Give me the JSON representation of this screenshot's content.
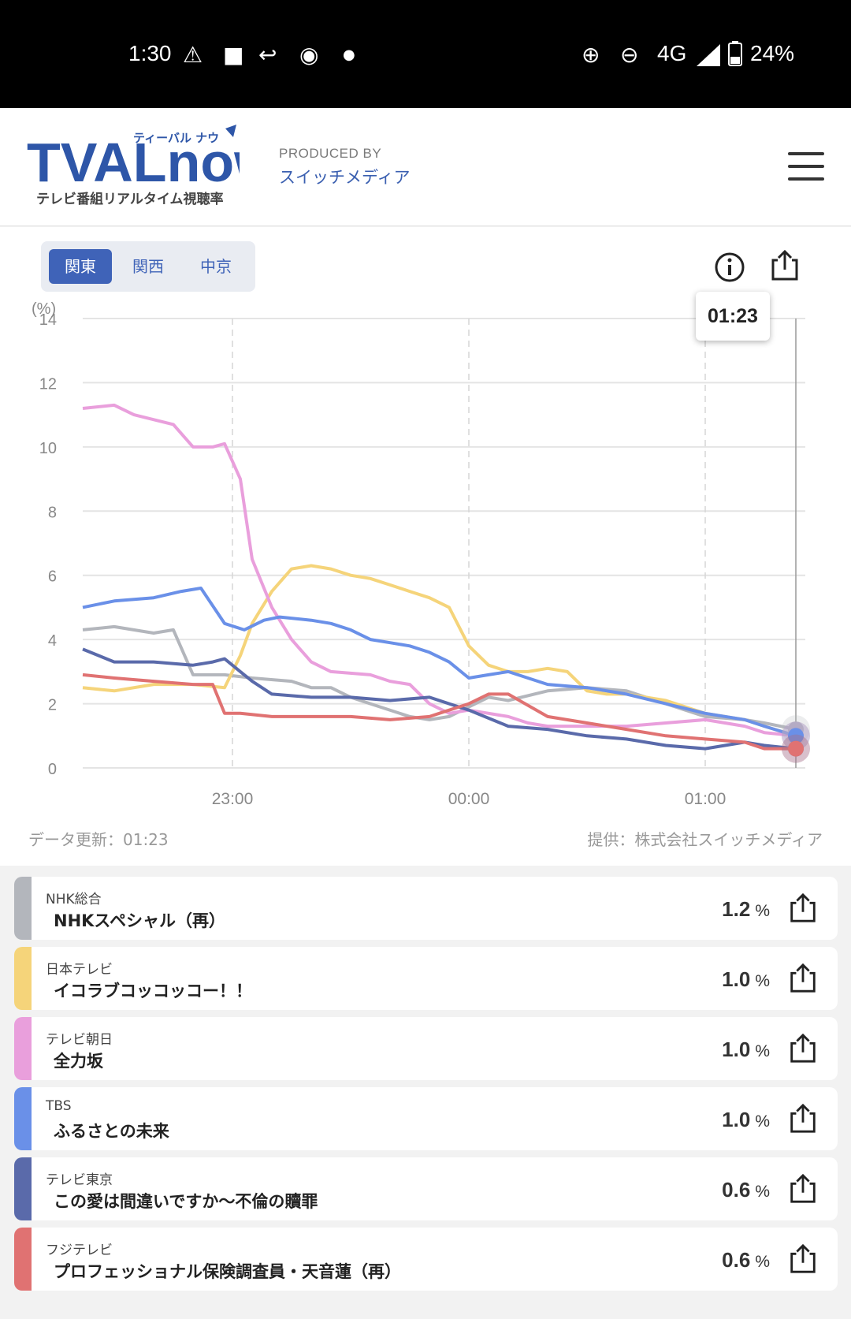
{
  "status_bar": {
    "time": "1:30",
    "left_icons": [
      "warning-icon",
      "app-icon",
      "reply-icon",
      "thermometer-icon",
      "dot-icon"
    ],
    "network": "4G",
    "battery": "24%"
  },
  "header": {
    "logo_main": "TVALnow",
    "logo_kana": "ティーバル ナウ",
    "logo_sub": "テレビ番組リアルタイム視聴率",
    "produced_by_label": "PRODUCED BY",
    "producer": "スイッチメディア"
  },
  "tabs": [
    {
      "label": "関東",
      "active": true
    },
    {
      "label": "関西",
      "active": false
    },
    {
      "label": "中京",
      "active": false
    }
  ],
  "tooltip_time": "01:23",
  "chart_footer": {
    "updated": "データ更新：01:23",
    "credit": "提供：株式会社スイッチメディア"
  },
  "chart_data": {
    "type": "line",
    "ylabel": "(%)",
    "ylim": [
      0,
      14
    ],
    "yticks": [
      "0",
      "2",
      "4",
      "6",
      "8",
      "10",
      "12",
      "14"
    ],
    "x_range": [
      "22:22",
      "01:23"
    ],
    "xticks": [
      "23:00",
      "00:00",
      "01:00"
    ],
    "grid": true,
    "series": [
      {
        "name": "NHK総合",
        "color": "#b3b6bc",
        "x": [
          "22:22",
          "22:30",
          "22:40",
          "22:45",
          "22:50",
          "22:58",
          "23:05",
          "23:15",
          "23:20",
          "23:25",
          "23:30",
          "23:35",
          "23:45",
          "23:50",
          "23:55",
          "00:00",
          "00:05",
          "00:10",
          "00:20",
          "00:30",
          "00:40",
          "00:50",
          "01:00",
          "01:10",
          "01:15",
          "01:23"
        ],
        "values": [
          4.3,
          4.4,
          4.2,
          4.3,
          2.9,
          2.9,
          2.8,
          2.7,
          2.5,
          2.5,
          2.2,
          2.0,
          1.6,
          1.5,
          1.6,
          1.9,
          2.2,
          2.1,
          2.4,
          2.5,
          2.4,
          2.0,
          1.6,
          1.5,
          1.4,
          1.2
        ]
      },
      {
        "name": "日本テレビ",
        "color": "#f5d47a",
        "x": [
          "22:22",
          "22:30",
          "22:40",
          "22:50",
          "22:58",
          "23:02",
          "23:05",
          "23:10",
          "23:15",
          "23:20",
          "23:25",
          "23:30",
          "23:35",
          "23:40",
          "23:45",
          "23:50",
          "23:55",
          "00:00",
          "00:05",
          "00:10",
          "00:15",
          "00:20",
          "00:25",
          "00:30",
          "00:35",
          "00:40",
          "00:50",
          "01:00",
          "01:10",
          "01:15",
          "01:23"
        ],
        "values": [
          2.5,
          2.4,
          2.6,
          2.6,
          2.5,
          3.5,
          4.5,
          5.5,
          6.2,
          6.3,
          6.2,
          6.0,
          5.9,
          5.7,
          5.5,
          5.3,
          5.0,
          3.8,
          3.2,
          3.0,
          3.0,
          3.1,
          3.0,
          2.4,
          2.3,
          2.3,
          2.1,
          1.7,
          1.5,
          1.3,
          1.0
        ]
      },
      {
        "name": "テレビ朝日",
        "color": "#e99fdc",
        "x": [
          "22:22",
          "22:30",
          "22:35",
          "22:45",
          "22:50",
          "22:55",
          "22:58",
          "23:02",
          "23:05",
          "23:10",
          "23:15",
          "23:20",
          "23:25",
          "23:35",
          "23:40",
          "23:45",
          "23:50",
          "23:55",
          "00:00",
          "00:10",
          "00:15",
          "00:20",
          "00:30",
          "00:40",
          "00:50",
          "01:00",
          "01:10",
          "01:15",
          "01:23"
        ],
        "values": [
          11.2,
          11.3,
          11.0,
          10.7,
          10.0,
          10.0,
          10.1,
          9.0,
          6.5,
          5.0,
          4.0,
          3.3,
          3.0,
          2.9,
          2.7,
          2.6,
          2.0,
          1.7,
          1.8,
          1.6,
          1.4,
          1.3,
          1.3,
          1.3,
          1.4,
          1.5,
          1.3,
          1.1,
          1.0
        ]
      },
      {
        "name": "TBS",
        "color": "#6a90e8",
        "x": [
          "22:22",
          "22:30",
          "22:40",
          "22:47",
          "22:52",
          "22:58",
          "23:03",
          "23:08",
          "23:12",
          "23:20",
          "23:25",
          "23:30",
          "23:35",
          "23:40",
          "23:45",
          "23:50",
          "23:55",
          "00:00",
          "00:05",
          "00:10",
          "00:20",
          "00:30",
          "00:40",
          "00:50",
          "01:00",
          "01:10",
          "01:15",
          "01:23"
        ],
        "values": [
          5.0,
          5.2,
          5.3,
          5.5,
          5.6,
          4.5,
          4.3,
          4.6,
          4.7,
          4.6,
          4.5,
          4.3,
          4.0,
          3.9,
          3.8,
          3.6,
          3.3,
          2.8,
          2.9,
          3.0,
          2.6,
          2.5,
          2.3,
          2.0,
          1.7,
          1.5,
          1.3,
          1.0
        ]
      },
      {
        "name": "テレビ東京",
        "color": "#5a6aaa",
        "x": [
          "22:22",
          "22:30",
          "22:40",
          "22:50",
          "22:55",
          "22:58",
          "23:02",
          "23:05",
          "23:10",
          "23:20",
          "23:30",
          "23:40",
          "23:50",
          "23:55",
          "00:00",
          "00:10",
          "00:20",
          "00:30",
          "00:40",
          "00:50",
          "01:00",
          "01:10",
          "01:15",
          "01:23"
        ],
        "values": [
          3.7,
          3.3,
          3.3,
          3.2,
          3.3,
          3.4,
          3.0,
          2.7,
          2.3,
          2.2,
          2.2,
          2.1,
          2.2,
          2.0,
          1.8,
          1.3,
          1.2,
          1.0,
          0.9,
          0.7,
          0.6,
          0.8,
          0.7,
          0.6
        ]
      },
      {
        "name": "フジテレビ",
        "color": "#e07272",
        "x": [
          "22:22",
          "22:30",
          "22:40",
          "22:50",
          "22:55",
          "22:58",
          "23:02",
          "23:10",
          "23:20",
          "23:30",
          "23:40",
          "23:50",
          "23:55",
          "00:00",
          "00:05",
          "00:10",
          "00:20",
          "00:30",
          "00:40",
          "00:50",
          "01:00",
          "01:10",
          "01:15",
          "01:23"
        ],
        "values": [
          2.9,
          2.8,
          2.7,
          2.6,
          2.6,
          1.7,
          1.7,
          1.6,
          1.6,
          1.6,
          1.5,
          1.6,
          1.8,
          2.0,
          2.3,
          2.3,
          1.6,
          1.4,
          1.2,
          1.0,
          0.9,
          0.8,
          0.6,
          0.6
        ]
      }
    ]
  },
  "channels": [
    {
      "channel": "NHK総合",
      "program": "NHKスペシャル（再）",
      "value": "1.2",
      "unit": "%",
      "color": "#b3b6bc"
    },
    {
      "channel": "日本テレビ",
      "program": "イコラブコッコッコー！！",
      "value": "1.0",
      "unit": "%",
      "color": "#f5d47a"
    },
    {
      "channel": "テレビ朝日",
      "program": "全力坂",
      "value": "1.0",
      "unit": "%",
      "color": "#e99fdc"
    },
    {
      "channel": "TBS",
      "program": "ふるさとの未来",
      "value": "1.0",
      "unit": "%",
      "color": "#6a90e8"
    },
    {
      "channel": "テレビ東京",
      "program": "この愛は間違いですか～不倫の贖罪",
      "value": "0.6",
      "unit": "%",
      "color": "#5a6aaa"
    },
    {
      "channel": "フジテレビ",
      "program": "プロフェッショナル保険調査員・天音蓮（再）",
      "value": "0.6",
      "unit": "%",
      "color": "#e07272"
    }
  ]
}
